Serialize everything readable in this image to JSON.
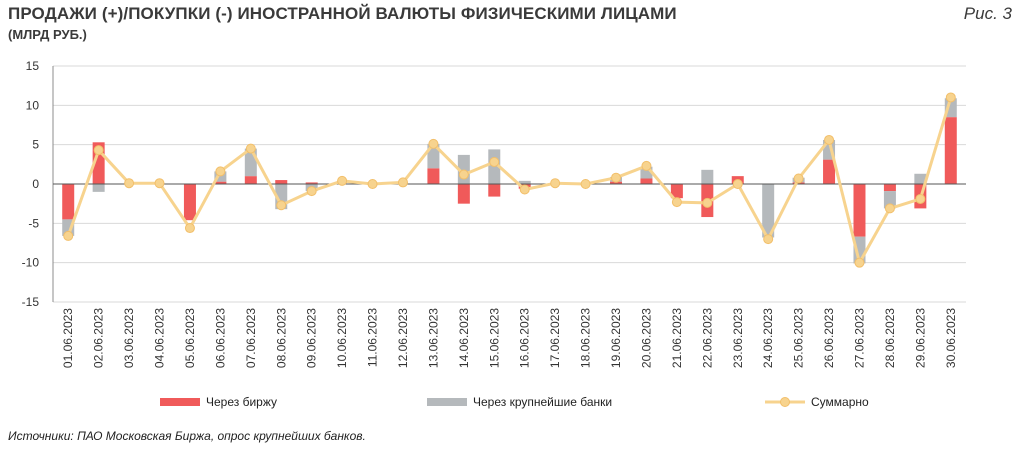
{
  "header": {
    "title": "ПРОДАЖИ (+)/ПОКУПКИ (-) ИНОСТРАННОЙ ВАЛЮТЫ ФИЗИЧЕСКИМИ ЛИЦАМИ",
    "subtitle": "(МЛРД РУБ.)",
    "figure_label": "Рис. 3"
  },
  "footer": {
    "source": "Источники: ПАО Московская Биржа, опрос крупнейших банков."
  },
  "colors": {
    "exchange": "#f05a5a",
    "banks": "#b5b9bc",
    "total": "#f7d38e",
    "grid": "#d9d9d9",
    "axis": "#8c8c8c"
  },
  "chart_data": {
    "type": "bar",
    "stacked": true,
    "ylim": [
      -15,
      15
    ],
    "yticks": [
      -15,
      -10,
      -5,
      0,
      5,
      10,
      15
    ],
    "grid": true,
    "legend_position": "bottom",
    "categories": [
      "01.06.2023",
      "02.06.2023",
      "03.06.2023",
      "04.06.2023",
      "05.06.2023",
      "06.06.2023",
      "07.06.2023",
      "08.06.2023",
      "09.06.2023",
      "10.06.2023",
      "11.06.2023",
      "12.06.2023",
      "13.06.2023",
      "14.06.2023",
      "15.06.2023",
      "16.06.2023",
      "17.06.2023",
      "18.06.2023",
      "19.06.2023",
      "20.06.2023",
      "21.06.2023",
      "22.06.2023",
      "23.06.2023",
      "24.06.2023",
      "25.06.2023",
      "26.06.2023",
      "27.06.2023",
      "28.06.2023",
      "29.06.2023",
      "30.06.2023"
    ],
    "series": [
      {
        "name": "Через биржу",
        "type": "bar",
        "values": [
          -4.5,
          5.3,
          0,
          0,
          -4.6,
          0.3,
          1.0,
          0.5,
          0.2,
          0,
          0,
          0,
          2.0,
          -2.5,
          -1.6,
          -0.6,
          0,
          0,
          0.3,
          0.7,
          -1.8,
          -4.2,
          1.0,
          0,
          0.2,
          3.1,
          -6.7,
          -0.9,
          -3.1,
          8.5
        ]
      },
      {
        "name": "Через крупнейшие банки",
        "type": "bar",
        "values": [
          -2.1,
          -1.0,
          0,
          0,
          0,
          1.3,
          3.5,
          -3.2,
          -0.9,
          0,
          0,
          0,
          3.1,
          3.7,
          4.4,
          0.4,
          0,
          0,
          0.6,
          1.5,
          0,
          1.8,
          0,
          -6.8,
          0.6,
          2.5,
          -3.4,
          -2.2,
          1.3,
          2.4
        ]
      },
      {
        "name": "Суммарно",
        "type": "line",
        "values": [
          -6.6,
          4.3,
          0.1,
          0.1,
          -5.6,
          1.6,
          4.5,
          -2.7,
          -0.9,
          0.4,
          0,
          0.2,
          5.1,
          1.2,
          2.8,
          -0.7,
          0.1,
          0,
          0.8,
          2.3,
          -2.3,
          -2.4,
          0,
          -7.0,
          0.7,
          5.6,
          -10.0,
          -3.1,
          -1.9,
          11.0
        ]
      }
    ]
  }
}
